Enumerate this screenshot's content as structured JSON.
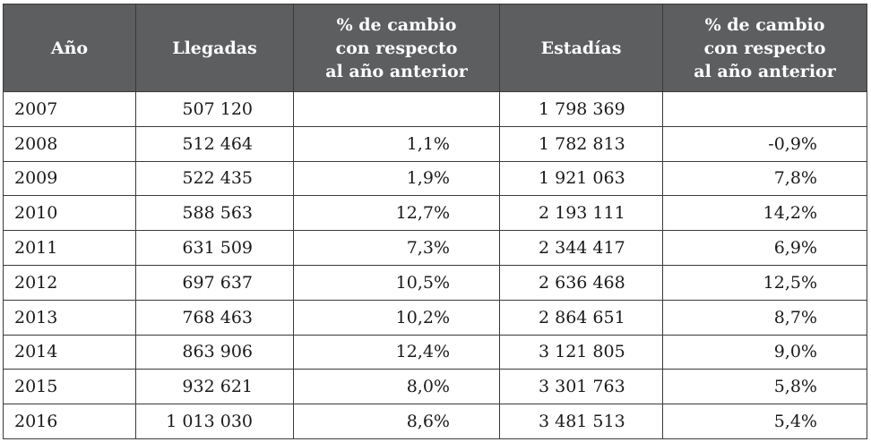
{
  "table": {
    "headers": {
      "year": "Año",
      "arrivals": "Llegadas",
      "arrivals_change": [
        "% de cambio",
        "con respecto",
        "al año anterior"
      ],
      "stays": "Estadías",
      "stays_change": [
        "% de cambio",
        "con respecto",
        "al año anterior"
      ]
    },
    "rows": [
      {
        "year": "2007",
        "arrivals": "507 120",
        "arrivals_change": "",
        "stays": "1 798 369",
        "stays_change": ""
      },
      {
        "year": "2008",
        "arrivals": "512 464",
        "arrivals_change": "1,1%",
        "stays": "1 782 813",
        "stays_change": "-0,9%"
      },
      {
        "year": "2009",
        "arrivals": "522 435",
        "arrivals_change": "1,9%",
        "stays": "1 921 063",
        "stays_change": "7,8%"
      },
      {
        "year": "2010",
        "arrivals": "588 563",
        "arrivals_change": "12,7%",
        "stays": "2 193 111",
        "stays_change": "14,2%"
      },
      {
        "year": "2011",
        "arrivals": "631 509",
        "arrivals_change": "7,3%",
        "stays": "2 344 417",
        "stays_change": "6,9%"
      },
      {
        "year": "2012",
        "arrivals": "697 637",
        "arrivals_change": "10,5%",
        "stays": "2 636 468",
        "stays_change": "12,5%"
      },
      {
        "year": "2013",
        "arrivals": "768 463",
        "arrivals_change": "10,2%",
        "stays": "2 864 651",
        "stays_change": "8,7%"
      },
      {
        "year": "2014",
        "arrivals": "863 906",
        "arrivals_change": "12,4%",
        "stays": "3 121 805",
        "stays_change": "9,0%"
      },
      {
        "year": "2015",
        "arrivals": "932 621",
        "arrivals_change": "8,0%",
        "stays": "3 301 763",
        "stays_change": "5,8%"
      },
      {
        "year": "2016",
        "arrivals": "1 013 030",
        "arrivals_change": "8,6%",
        "stays": "3 481 513",
        "stays_change": "5,4%"
      }
    ]
  }
}
